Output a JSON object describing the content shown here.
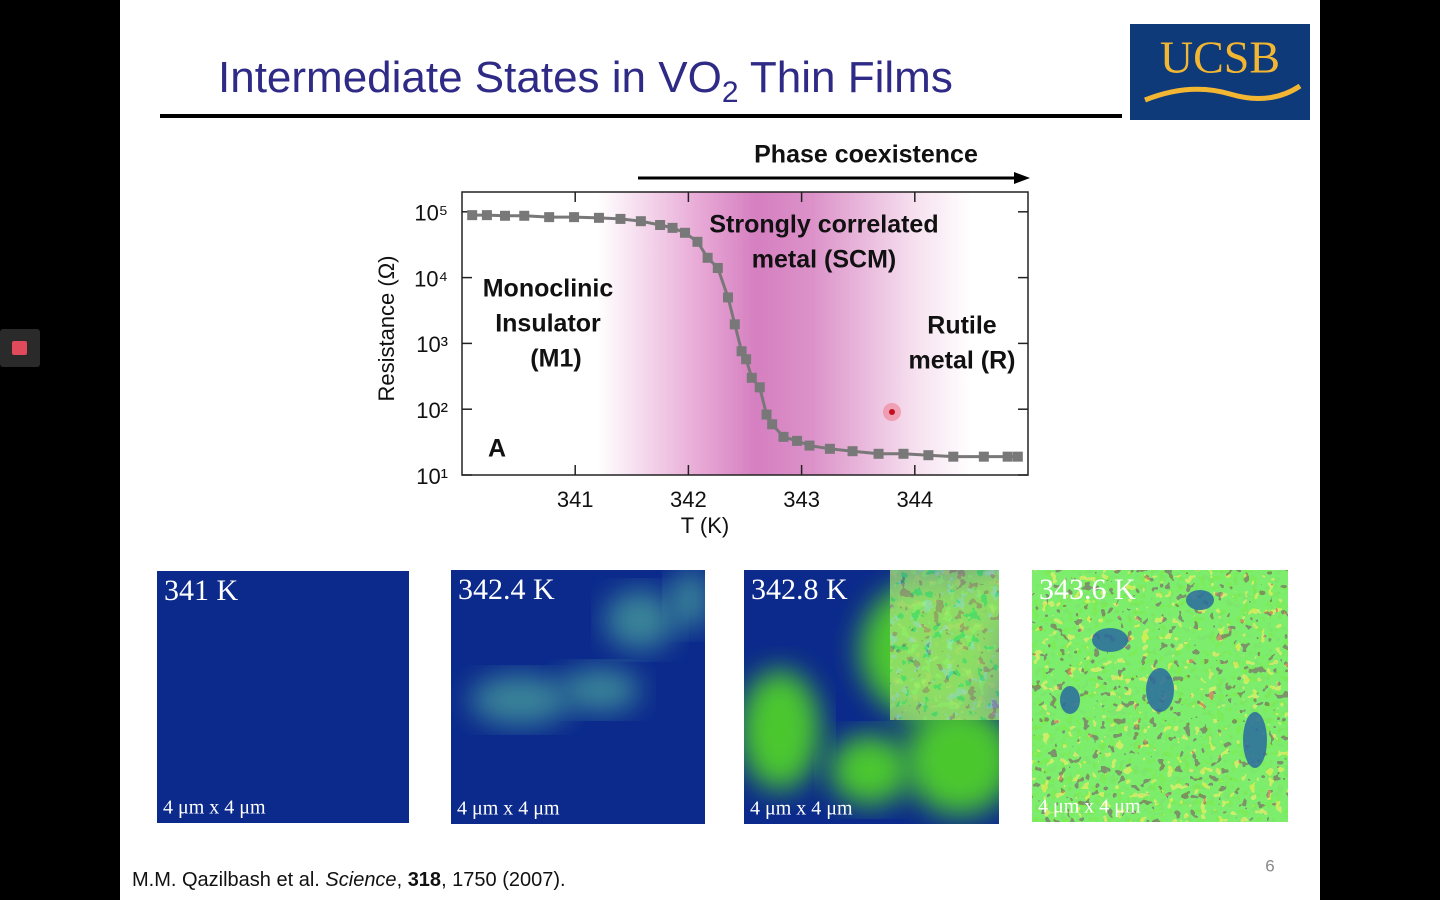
{
  "slide": {
    "title_parts": [
      "Intermediate States in VO",
      "2",
      " Thin Films"
    ],
    "logo": "UCSB",
    "page_number": "6",
    "citation_parts": [
      "M.M. Qazilbash et al. ",
      "Science",
      ", ",
      "318",
      ", 1750 (2007)."
    ]
  },
  "images": [
    {
      "label": "341 K",
      "scale": "4 μm x 4 μm"
    },
    {
      "label": "342.4 K",
      "scale": "4 μm x 4 μm"
    },
    {
      "label": "342.8 K",
      "scale": "4 μm x 4 μm"
    },
    {
      "label": "343.6 K",
      "scale": "4 μm x 4 μm"
    }
  ],
  "chart_data": {
    "type": "line",
    "x_label": "T (K)",
    "y_label": "Resistance (Ω)",
    "annotations": [
      "Phase coexistence",
      "Strongly correlated",
      "metal (SCM)",
      "Monoclinic",
      "Insulator",
      "(M1)",
      "Rutile",
      "metal (R)",
      "A"
    ],
    "x": [
      340.09,
      340.22,
      340.38,
      340.55,
      340.77,
      340.99,
      341.21,
      341.4,
      341.58,
      341.75,
      341.86,
      341.97,
      342.08,
      342.17,
      342.26,
      342.35,
      342.41,
      342.47,
      342.51,
      342.56,
      342.63,
      342.69,
      342.74,
      342.84,
      342.96,
      343.07,
      343.25,
      343.45,
      343.68,
      343.9,
      344.12,
      344.34,
      344.61,
      344.82,
      344.91
    ],
    "series": [
      {
        "color": "#787878",
        "values": [
          89000,
          89000,
          87000,
          87000,
          83000,
          83000,
          81000,
          78000,
          72000,
          63000,
          57000,
          48000,
          35000,
          20000,
          14000,
          5000,
          1950,
          760,
          575,
          300,
          215,
          83,
          59,
          38,
          33,
          28,
          25,
          23,
          21,
          21,
          20,
          19,
          19,
          19,
          19
        ]
      }
    ],
    "xlim": [
      340.0,
      345.0
    ],
    "xticks": [
      341,
      342,
      343,
      344
    ],
    "ylim": [
      10,
      200000
    ],
    "log_y": true,
    "yticks": [
      {
        "value": 10,
        "label": "10¹"
      },
      {
        "value": 100,
        "label": "10²"
      },
      {
        "value": 1000,
        "label": "10³"
      },
      {
        "value": 10000,
        "label": "10⁴"
      },
      {
        "value": 100000,
        "label": "10⁵"
      }
    ]
  }
}
